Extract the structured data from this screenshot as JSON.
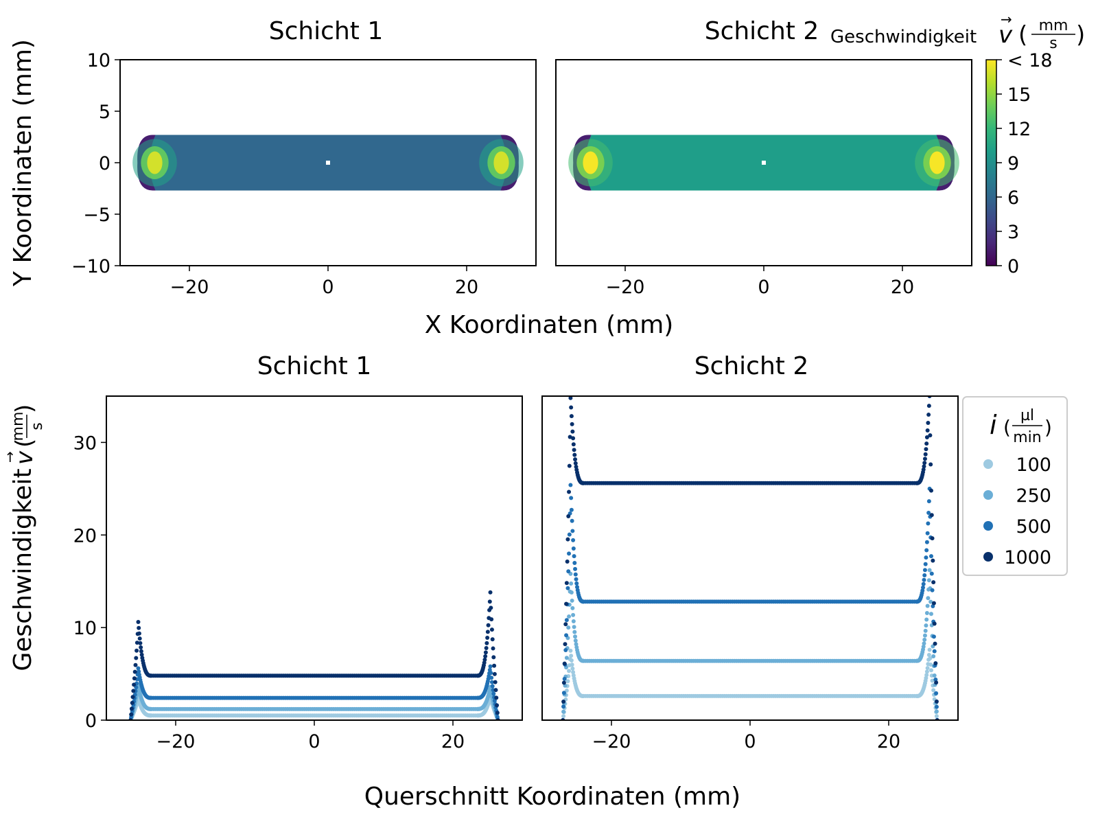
{
  "colors": {
    "viridis": [
      "#440154",
      "#482878",
      "#3e4989",
      "#31688e",
      "#26828e",
      "#1f9e89",
      "#35b779",
      "#6ece58",
      "#b5de2b",
      "#fde725"
    ],
    "series": [
      "#9ecae1",
      "#6baed6",
      "#2171b5",
      "#08306b"
    ],
    "frame": "#000000"
  },
  "labels": {
    "top_xlabel": "X Koordinaten (mm)",
    "top_ylabel": "Y Koordinaten (mm)",
    "colorbar_label": "Geschwindigkeit",
    "colorbar_vec": "v",
    "colorbar_unit_num": "mm",
    "colorbar_unit_den": "s",
    "bottom_xlabel": "Querschnitt Koordinaten (mm)",
    "bottom_ylabel": "Geschwindigkeit",
    "bottom_ylabel_vec": "v",
    "bottom_ylabel_unit_num": "mm",
    "bottom_ylabel_unit_den": "s",
    "legend_title": "i",
    "legend_unit_num": "µl",
    "legend_unit_den": "min"
  },
  "chart_data": [
    {
      "type": "heatmap",
      "title": "Schicht 1",
      "xlim": [
        -30,
        30
      ],
      "ylim": [
        -10,
        10
      ],
      "xticks": [
        -20,
        0,
        20
      ],
      "yticks": [
        10,
        5,
        0,
        -5,
        -10
      ],
      "bulk_velocity": 6,
      "end_peak_velocity": 17,
      "channel_x_extent": [
        -27.5,
        27.5
      ],
      "channel_y_extent": [
        -2.7,
        2.7
      ]
    },
    {
      "type": "heatmap",
      "title": "Schicht 2",
      "xlim": [
        -30,
        30
      ],
      "ylim": [
        -10,
        10
      ],
      "xticks": [
        -20,
        0,
        20
      ],
      "bulk_velocity": 10,
      "end_peak_velocity": 18,
      "channel_x_extent": [
        -27.5,
        27.5
      ],
      "channel_y_extent": [
        -2.7,
        2.7
      ],
      "colorbar": {
        "range": [
          0,
          18
        ],
        "ticks": [
          0,
          3,
          6,
          9,
          12,
          15
        ],
        "top_label": "< 18"
      }
    },
    {
      "type": "scatter",
      "title": "Schicht 1",
      "xlim": [
        -30,
        30
      ],
      "ylim": [
        0,
        35
      ],
      "xticks": [
        -20,
        0,
        20
      ],
      "yticks": [
        0,
        10,
        20,
        30
      ],
      "series": [
        {
          "name": "100",
          "plateau": 0.5,
          "peak_left": 2.4,
          "peak_right": 2.6
        },
        {
          "name": "250",
          "plateau": 1.2,
          "peak_left": 3.8,
          "peak_right": 3.6
        },
        {
          "name": "500",
          "plateau": 2.4,
          "peak_left": 5.6,
          "peak_right": 5.8
        },
        {
          "name": "1000",
          "plateau": 4.8,
          "peak_left": 10.6,
          "peak_right": 13.8
        }
      ],
      "x_range": [
        -26.5,
        26.5
      ]
    },
    {
      "type": "scatter",
      "title": "Schicht 2",
      "xlim": [
        -30,
        30
      ],
      "ylim": [
        0,
        35
      ],
      "xticks": [
        -20,
        0,
        20
      ],
      "series": [
        {
          "name": "100",
          "plateau": 2.6,
          "peak_left": 7.5,
          "peak_right": 7.6
        },
        {
          "name": "250",
          "plateau": 6.4,
          "peak_left": 15.8,
          "peak_right": 16.2
        },
        {
          "name": "500",
          "plateau": 12.8,
          "peak_left": 25.4,
          "peak_right": 25.0
        },
        {
          "name": "1000",
          "plateau": 25.6,
          "peak_left": 34.8,
          "peak_right": 35.0
        }
      ],
      "x_range": [
        -27,
        27
      ]
    }
  ],
  "legend": {
    "entries": [
      "100",
      "250",
      "500",
      "1000"
    ]
  }
}
